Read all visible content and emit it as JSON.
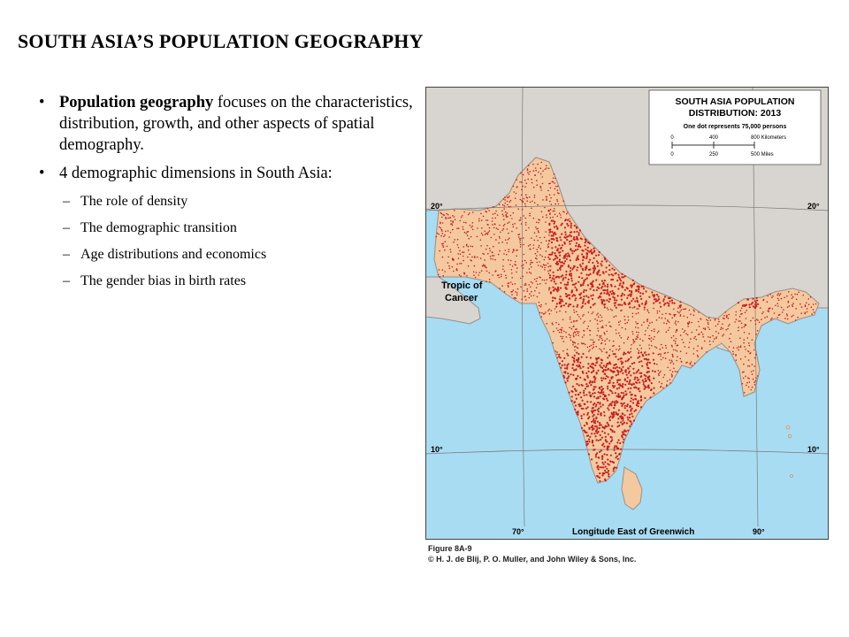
{
  "slide": {
    "title": "SOUTH ASIA’S POPULATION GEOGRAPHY",
    "bullet1_bold": "Population geography",
    "bullet1_text": " focuses on the characteristics, distribution, growth, and other aspects of spatial demography.",
    "bullet2_text": "4 demographic dimensions in South Asia:",
    "sub_items": [
      "The role of density",
      "The demographic transition",
      "Age distributions and economics",
      "The gender bias in birth rates"
    ]
  },
  "map": {
    "legend_title_line1": "SOUTH ASIA POPULATION",
    "legend_title_line2": "DISTRIBUTION: 2013",
    "legend_subtitle": "One dot represents 75,000 persons",
    "km_ticks": [
      "0",
      "400",
      "800 Kilometers"
    ],
    "mile_ticks": [
      "0",
      "250",
      "500 Miles"
    ],
    "lat_labels": {
      "north_left": "20°",
      "north_right": "20°",
      "south_left": "10°",
      "south_right": "10°"
    },
    "tropic_label_line1": "Tropic of",
    "tropic_label_line2": "Cancer",
    "lon_labels": {
      "west": "70°",
      "east": "90°"
    },
    "longitude_caption": "Longitude East of Greenwich",
    "colors": {
      "sea": "#a8dcf2",
      "land_region": "#f4c9a0",
      "land_other": "#d8d4cf",
      "dots": "#c81e1e",
      "border": "#9a8f86"
    }
  },
  "figure_caption": {
    "line1": "Figure 8A-9",
    "line2": "© H. J. de Blij, P. O. Muller, and John Wiley & Sons, Inc."
  }
}
